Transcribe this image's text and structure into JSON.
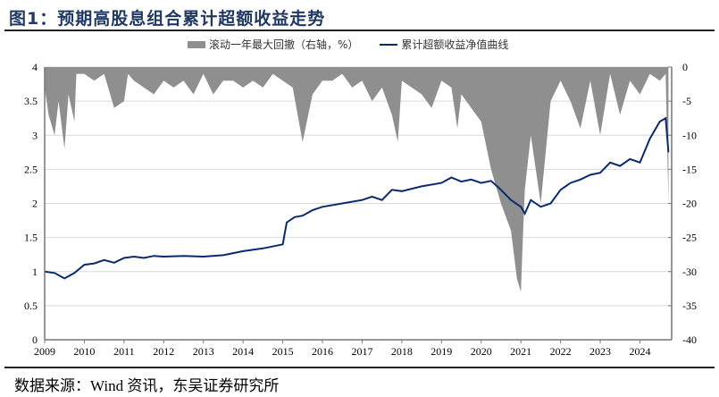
{
  "figure": {
    "title": "图1：预期高股息组合累计超额收益走势",
    "source": "数据来源：Wind 资讯，东吴证券研究所"
  },
  "legend": {
    "area_label": "滚动一年最大回撤（右轴，%）",
    "line_label": "累计超额收益净值曲线"
  },
  "colors": {
    "area": "#8f8f8f",
    "line": "#0b2a6e",
    "title": "#1f3864",
    "grid": "#d9d9d9"
  },
  "chart_data": {
    "type": "line",
    "title": "预期高股息组合累计超额收益走势",
    "xlabel": "",
    "ylabel": "",
    "y2label": "滚动一年最大回撤（%）",
    "x_ticks": [
      "2009",
      "2010",
      "2011",
      "2012",
      "2013",
      "2014",
      "2015",
      "2016",
      "2017",
      "2018",
      "2019",
      "2020",
      "2021",
      "2022",
      "2023",
      "2024"
    ],
    "y_ticks_left": [
      "0",
      "0.5",
      "1",
      "1.5",
      "2",
      "2.5",
      "3",
      "3.5",
      "4"
    ],
    "y_ticks_right": [
      "-40",
      "-35",
      "-30",
      "-25",
      "-20",
      "-15",
      "-10",
      "-5",
      "0"
    ],
    "ylim": [
      0,
      4
    ],
    "y2lim": [
      -40,
      0
    ],
    "grid": true,
    "legend_position": "top",
    "series": [
      {
        "name": "累计超额收益净值曲线",
        "type": "line",
        "axis": "left",
        "x": [
          2009.0,
          2009.25,
          2009.5,
          2009.75,
          2010.0,
          2010.25,
          2010.5,
          2010.75,
          2011.0,
          2011.25,
          2011.5,
          2011.75,
          2012.0,
          2012.5,
          2013.0,
          2013.5,
          2014.0,
          2014.5,
          2015.0,
          2015.1,
          2015.3,
          2015.5,
          2015.75,
          2016.0,
          2016.5,
          2017.0,
          2017.25,
          2017.5,
          2017.75,
          2018.0,
          2018.5,
          2019.0,
          2019.25,
          2019.5,
          2019.75,
          2020.0,
          2020.25,
          2020.5,
          2020.75,
          2021.0,
          2021.1,
          2021.25,
          2021.5,
          2021.75,
          2022.0,
          2022.25,
          2022.5,
          2022.75,
          2023.0,
          2023.25,
          2023.5,
          2023.75,
          2024.0,
          2024.25,
          2024.5,
          2024.65,
          2024.72
        ],
        "values": [
          1.0,
          0.98,
          0.9,
          0.98,
          1.1,
          1.12,
          1.17,
          1.13,
          1.2,
          1.22,
          1.2,
          1.23,
          1.22,
          1.23,
          1.22,
          1.24,
          1.3,
          1.34,
          1.4,
          1.72,
          1.8,
          1.82,
          1.9,
          1.95,
          2.0,
          2.05,
          2.1,
          2.05,
          2.2,
          2.18,
          2.25,
          2.3,
          2.38,
          2.32,
          2.35,
          2.3,
          2.33,
          2.2,
          2.05,
          1.95,
          1.85,
          2.05,
          1.95,
          2.0,
          2.2,
          2.3,
          2.35,
          2.42,
          2.45,
          2.6,
          2.55,
          2.65,
          2.6,
          2.95,
          3.2,
          3.25,
          2.75
        ]
      },
      {
        "name": "滚动一年最大回撤（右轴，%）",
        "type": "area",
        "axis": "right",
        "x": [
          2009.0,
          2009.1,
          2009.25,
          2009.35,
          2009.5,
          2009.6,
          2009.75,
          2009.8,
          2010.0,
          2010.25,
          2010.5,
          2010.75,
          2011.0,
          2011.1,
          2011.25,
          2011.5,
          2011.75,
          2012.0,
          2012.25,
          2012.5,
          2012.75,
          2013.0,
          2013.25,
          2013.5,
          2013.75,
          2014.0,
          2014.25,
          2014.5,
          2014.75,
          2015.0,
          2015.25,
          2015.5,
          2015.75,
          2016.0,
          2016.25,
          2016.5,
          2016.75,
          2017.0,
          2017.25,
          2017.5,
          2017.75,
          2017.9,
          2018.0,
          2018.25,
          2018.5,
          2018.75,
          2019.0,
          2019.25,
          2019.4,
          2019.5,
          2019.75,
          2020.0,
          2020.25,
          2020.5,
          2020.75,
          2020.9,
          2021.0,
          2021.05,
          2021.1,
          2021.25,
          2021.5,
          2021.75,
          2022.0,
          2022.25,
          2022.5,
          2022.75,
          2023.0,
          2023.25,
          2023.5,
          2023.75,
          2024.0,
          2024.25,
          2024.5,
          2024.65,
          2024.72
        ],
        "values": [
          -3,
          -7,
          -10,
          -5,
          -12,
          -4,
          -8,
          -1,
          -1,
          -2,
          -1,
          -6,
          -5,
          -1,
          -2,
          -3,
          -4,
          -2,
          -3,
          -2,
          -4,
          -1,
          -4,
          -2,
          -2,
          -3,
          -2,
          -3,
          -1,
          -2,
          -3,
          -11,
          -4,
          -2,
          -2,
          -1,
          -3,
          -2,
          -5,
          -3,
          -7,
          -11,
          -2,
          -3,
          -4,
          -6,
          -2,
          -3,
          -9,
          -4,
          -6,
          -8,
          -15,
          -20,
          -24,
          -31,
          -33,
          -25,
          -18,
          -10,
          -20,
          -5,
          -2,
          -5,
          -9,
          -2,
          -10,
          -1,
          -7,
          -2,
          -4,
          -1,
          -2,
          -1,
          -20
        ]
      }
    ]
  }
}
